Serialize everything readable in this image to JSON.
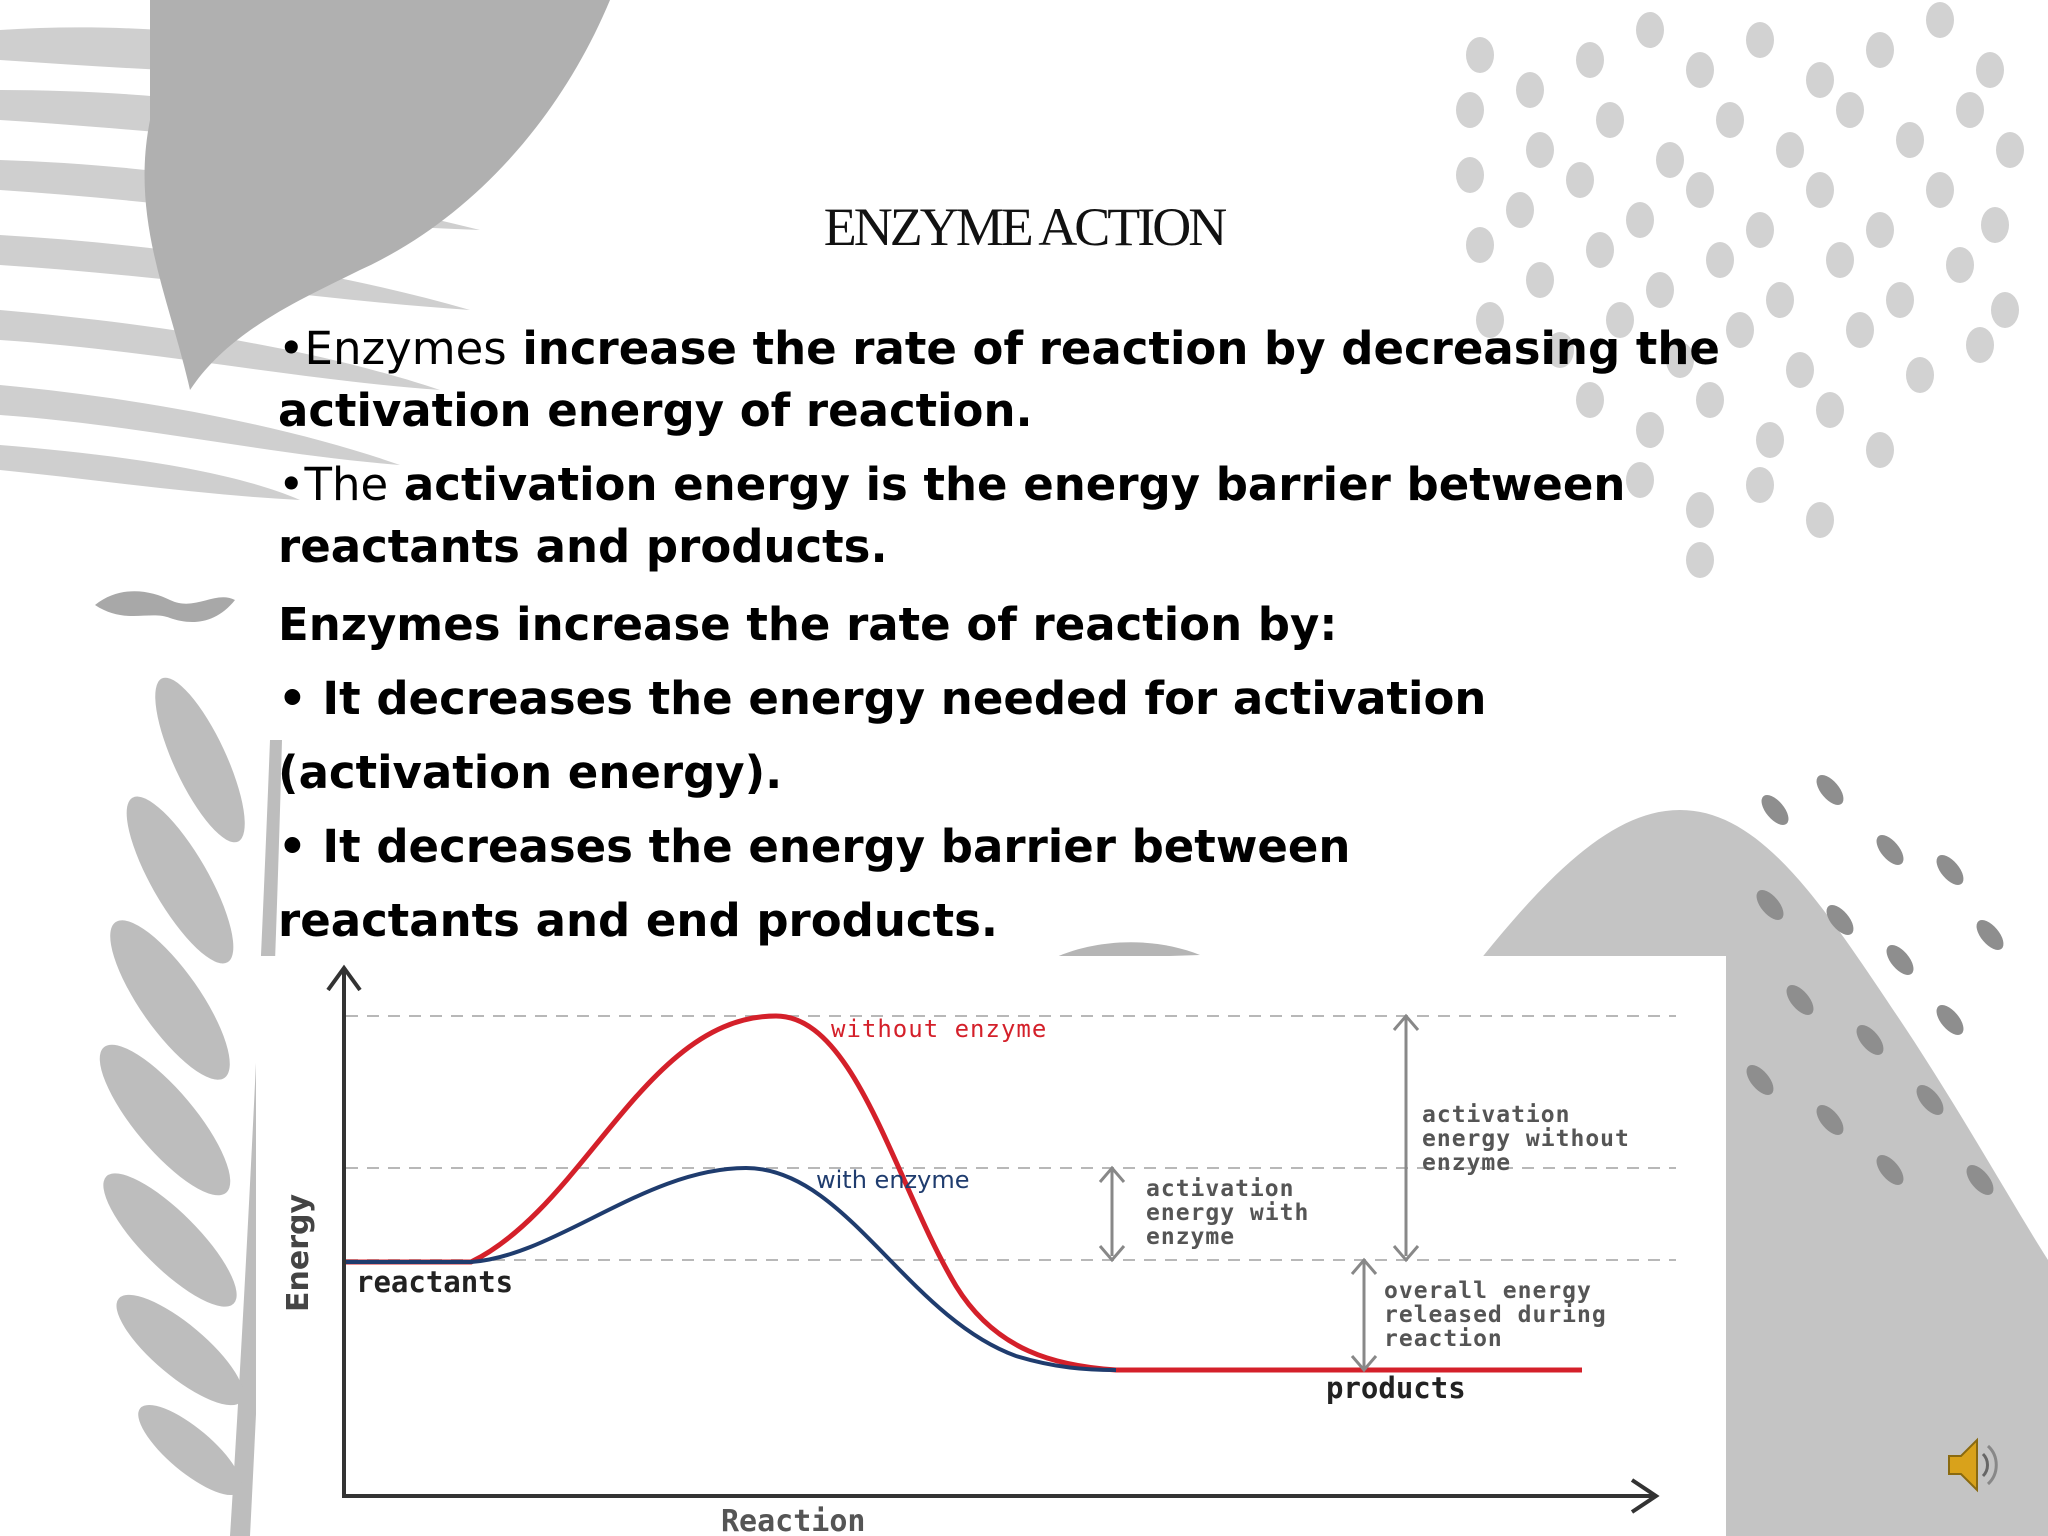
{
  "slide": {
    "title": "ENZYME ACTION",
    "bullet1_prefix": "•Enzymes",
    "bullet1_rest": " increase the rate of reaction by decreasing the activation energy of reaction.",
    "bullet2_prefix": "•The",
    "bullet2_rest": " activation energy is the energy barrier between reactants and products.",
    "heading": "Enzymes increase the rate of reaction by:",
    "point1_line1": "• It decreases the energy needed for activation",
    "point1_line2": "(activation energy).",
    "point2_line1": "• It decreases the energy barrier between",
    "point2_line2": "reactants and end products."
  },
  "diagram": {
    "axis_y_label": "Energy",
    "axis_x_label": "Reaction",
    "label_reactants": "reactants",
    "label_products": "products",
    "curve_without": "without enzyme",
    "curve_with": "with enzyme",
    "ann_act_with": [
      "activation",
      "energy with",
      "enzyme"
    ],
    "ann_act_without": [
      "activation",
      "energy without",
      "enzyme"
    ],
    "ann_overall": [
      "overall energy",
      "released during",
      "reaction"
    ],
    "colors": {
      "without": "#d4202a",
      "with": "#1f3c6e",
      "axis": "#333333",
      "guide": "#b8b8b8",
      "arrow": "#888888",
      "text": "#555555"
    }
  },
  "icons": {
    "speaker": "speaker-icon"
  }
}
